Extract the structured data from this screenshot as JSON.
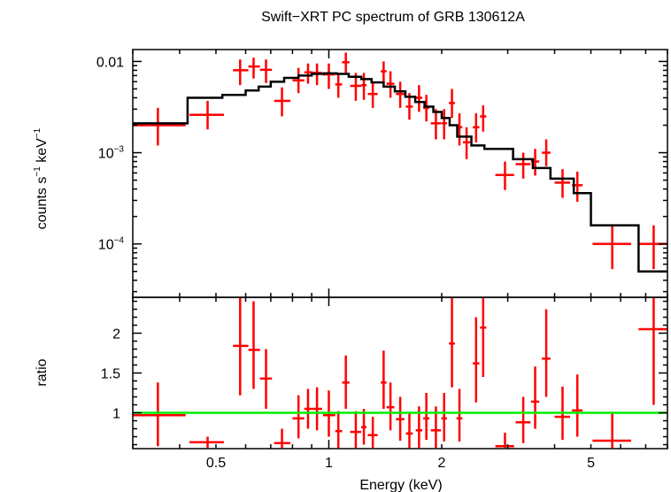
{
  "title": "Swift−XRT PC spectrum of GRB 130612A",
  "chart_data": [
    {
      "type": "line",
      "panel": "spectrum",
      "title": "Swift−XRT PC spectrum of GRB 130612A",
      "ylabel_parts": {
        "base": "counts s",
        "exp1": "−1",
        "mid": " keV",
        "exp2": "−1"
      },
      "xscale": "log",
      "yscale": "log",
      "xlim": [
        0.3,
        8.0
      ],
      "ylim": [
        2.6e-05,
        0.0135
      ],
      "ytick_labels": [
        {
          "value": 0.01,
          "base": "0.01",
          "exp": ""
        },
        {
          "value": 0.001,
          "base": "10",
          "exp": "−3"
        },
        {
          "value": 0.0001,
          "base": "10",
          "exp": "−4"
        }
      ],
      "colors": {
        "data": "#ff0000",
        "model": "#000000"
      },
      "series": [
        {
          "name": "data",
          "style": "crosses",
          "points": [
            {
              "x": 0.35,
              "xlo": 0.3,
              "xhi": 0.415,
              "y": 0.002,
              "ylo": 0.0012,
              "yhi": 0.0031
            },
            {
              "x": 0.475,
              "xlo": 0.425,
              "xhi": 0.525,
              "y": 0.0026,
              "ylo": 0.0018,
              "yhi": 0.0037
            },
            {
              "x": 0.58,
              "xlo": 0.555,
              "xhi": 0.61,
              "y": 0.008,
              "ylo": 0.0055,
              "yhi": 0.0105
            },
            {
              "x": 0.63,
              "xlo": 0.61,
              "xhi": 0.655,
              "y": 0.0088,
              "ylo": 0.0065,
              "yhi": 0.011
            },
            {
              "x": 0.68,
              "xlo": 0.655,
              "xhi": 0.705,
              "y": 0.0081,
              "ylo": 0.0058,
              "yhi": 0.0105
            },
            {
              "x": 0.75,
              "xlo": 0.715,
              "xhi": 0.79,
              "y": 0.0037,
              "ylo": 0.0025,
              "yhi": 0.0052
            },
            {
              "x": 0.83,
              "xlo": 0.8,
              "xhi": 0.86,
              "y": 0.0062,
              "ylo": 0.0045,
              "yhi": 0.0085
            },
            {
              "x": 0.88,
              "xlo": 0.86,
              "xhi": 0.905,
              "y": 0.0076,
              "ylo": 0.0057,
              "yhi": 0.0095
            },
            {
              "x": 0.93,
              "xlo": 0.905,
              "xhi": 0.96,
              "y": 0.0075,
              "ylo": 0.0055,
              "yhi": 0.0095
            },
            {
              "x": 1.0,
              "xlo": 0.965,
              "xhi": 1.04,
              "y": 0.0072,
              "ylo": 0.005,
              "yhi": 0.0095
            },
            {
              "x": 1.06,
              "xlo": 1.04,
              "xhi": 1.085,
              "y": 0.0056,
              "ylo": 0.004,
              "yhi": 0.0075
            },
            {
              "x": 1.11,
              "xlo": 1.085,
              "xhi": 1.135,
              "y": 0.0098,
              "ylo": 0.0075,
              "yhi": 0.0125
            },
            {
              "x": 1.18,
              "xlo": 1.14,
              "xhi": 1.22,
              "y": 0.0054,
              "ylo": 0.0037,
              "yhi": 0.0075
            },
            {
              "x": 1.24,
              "xlo": 1.22,
              "xhi": 1.26,
              "y": 0.0055,
              "ylo": 0.0038,
              "yhi": 0.0075
            },
            {
              "x": 1.31,
              "xlo": 1.27,
              "xhi": 1.35,
              "y": 0.0044,
              "ylo": 0.0031,
              "yhi": 0.006
            },
            {
              "x": 1.4,
              "xlo": 1.375,
              "xhi": 1.425,
              "y": 0.0078,
              "ylo": 0.0058,
              "yhi": 0.01
            },
            {
              "x": 1.46,
              "xlo": 1.425,
              "xhi": 1.495,
              "y": 0.0057,
              "ylo": 0.004,
              "yhi": 0.0078
            },
            {
              "x": 1.55,
              "xlo": 1.51,
              "xhi": 1.59,
              "y": 0.0044,
              "ylo": 0.0031,
              "yhi": 0.006
            },
            {
              "x": 1.64,
              "xlo": 1.605,
              "xhi": 1.675,
              "y": 0.0032,
              "ylo": 0.0023,
              "yhi": 0.0045
            },
            {
              "x": 1.74,
              "xlo": 1.705,
              "xhi": 1.775,
              "y": 0.004,
              "ylo": 0.0028,
              "yhi": 0.0055
            },
            {
              "x": 1.82,
              "xlo": 1.785,
              "xhi": 1.855,
              "y": 0.0031,
              "ylo": 0.0022,
              "yhi": 0.0043
            },
            {
              "x": 1.93,
              "xlo": 1.87,
              "xhi": 1.99,
              "y": 0.0021,
              "ylo": 0.0014,
              "yhi": 0.003
            },
            {
              "x": 2.03,
              "xlo": 1.995,
              "xhi": 2.065,
              "y": 0.0021,
              "ylo": 0.0014,
              "yhi": 0.003
            },
            {
              "x": 2.13,
              "xlo": 2.09,
              "xhi": 2.17,
              "y": 0.0035,
              "ylo": 0.0024,
              "yhi": 0.005
            },
            {
              "x": 2.23,
              "xlo": 2.19,
              "xhi": 2.27,
              "y": 0.0019,
              "ylo": 0.0012,
              "yhi": 0.0027
            },
            {
              "x": 2.33,
              "xlo": 2.28,
              "xhi": 2.38,
              "y": 0.0013,
              "ylo": 0.00085,
              "yhi": 0.0019
            },
            {
              "x": 2.47,
              "xlo": 2.42,
              "xhi": 2.52,
              "y": 0.0019,
              "ylo": 0.0013,
              "yhi": 0.0027
            },
            {
              "x": 2.58,
              "xlo": 2.53,
              "xhi": 2.63,
              "y": 0.0025,
              "ylo": 0.0017,
              "yhi": 0.0033
            },
            {
              "x": 2.95,
              "xlo": 2.78,
              "xhi": 3.12,
              "y": 0.00057,
              "ylo": 0.00039,
              "yhi": 0.0008
            },
            {
              "x": 3.3,
              "xlo": 3.15,
              "xhi": 3.45,
              "y": 0.00075,
              "ylo": 0.00052,
              "yhi": 0.001
            },
            {
              "x": 3.55,
              "xlo": 3.46,
              "xhi": 3.64,
              "y": 0.0008,
              "ylo": 0.00056,
              "yhi": 0.0011
            },
            {
              "x": 3.8,
              "xlo": 3.7,
              "xhi": 3.9,
              "y": 0.001,
              "ylo": 0.00071,
              "yhi": 0.0014
            },
            {
              "x": 4.2,
              "xlo": 4.0,
              "xhi": 4.4,
              "y": 0.00047,
              "ylo": 0.00032,
              "yhi": 0.00066
            },
            {
              "x": 4.6,
              "xlo": 4.45,
              "xhi": 4.75,
              "y": 0.00044,
              "ylo": 0.00029,
              "yhi": 0.00062
            },
            {
              "x": 5.7,
              "xlo": 5.05,
              "xhi": 6.4,
              "y": 0.0001,
              "ylo": 5.3e-05,
              "yhi": 0.00016
            },
            {
              "x": 7.35,
              "xlo": 6.7,
              "xhi": 8.0,
              "y": 0.0001,
              "ylo": 5.3e-05,
              "yhi": 0.00016
            }
          ]
        },
        {
          "name": "model",
          "style": "step",
          "steps": [
            {
              "x0": 0.3,
              "x1": 0.42,
              "y": 0.0021
            },
            {
              "x0": 0.42,
              "x1": 0.52,
              "y": 0.004
            },
            {
              "x0": 0.52,
              "x1": 0.6,
              "y": 0.0043
            },
            {
              "x0": 0.6,
              "x1": 0.65,
              "y": 0.0048
            },
            {
              "x0": 0.65,
              "x1": 0.7,
              "y": 0.0053
            },
            {
              "x0": 0.7,
              "x1": 0.76,
              "y": 0.006
            },
            {
              "x0": 0.76,
              "x1": 0.83,
              "y": 0.0066
            },
            {
              "x0": 0.83,
              "x1": 0.9,
              "y": 0.007
            },
            {
              "x0": 0.9,
              "x1": 0.97,
              "y": 0.0073
            },
            {
              "x0": 0.97,
              "x1": 1.05,
              "y": 0.0074
            },
            {
              "x0": 1.05,
              "x1": 1.13,
              "y": 0.0073
            },
            {
              "x0": 1.13,
              "x1": 1.22,
              "y": 0.0068
            },
            {
              "x0": 1.22,
              "x1": 1.3,
              "y": 0.0064
            },
            {
              "x0": 1.3,
              "x1": 1.4,
              "y": 0.0059
            },
            {
              "x0": 1.4,
              "x1": 1.5,
              "y": 0.0053
            },
            {
              "x0": 1.5,
              "x1": 1.6,
              "y": 0.0047
            },
            {
              "x0": 1.6,
              "x1": 1.7,
              "y": 0.0041
            },
            {
              "x0": 1.7,
              "x1": 1.8,
              "y": 0.0036
            },
            {
              "x0": 1.8,
              "x1": 1.9,
              "y": 0.0032
            },
            {
              "x0": 1.9,
              "x1": 2.0,
              "y": 0.0028
            },
            {
              "x0": 2.0,
              "x1": 2.1,
              "y": 0.0024
            },
            {
              "x0": 2.1,
              "x1": 2.2,
              "y": 0.002
            },
            {
              "x0": 2.2,
              "x1": 2.4,
              "y": 0.0015
            },
            {
              "x0": 2.4,
              "x1": 2.6,
              "y": 0.0012
            },
            {
              "x0": 2.6,
              "x1": 3.1,
              "y": 0.0011
            },
            {
              "x0": 3.1,
              "x1": 3.5,
              "y": 0.00085
            },
            {
              "x0": 3.5,
              "x1": 3.9,
              "y": 0.00068
            },
            {
              "x0": 3.9,
              "x1": 4.5,
              "y": 0.00052
            },
            {
              "x0": 4.5,
              "x1": 5.0,
              "y": 0.00036
            },
            {
              "x0": 5.0,
              "x1": 6.7,
              "y": 0.00016
            },
            {
              "x0": 6.7,
              "x1": 8.0,
              "y": 5e-05
            }
          ]
        }
      ]
    },
    {
      "type": "scatter",
      "panel": "ratio",
      "xlabel": "Energy (keV)",
      "ylabel": "ratio",
      "xscale": "log",
      "yscale": "linear",
      "xlim": [
        0.3,
        8.0
      ],
      "ylim": [
        0.55,
        2.45
      ],
      "xtick_labels": [
        {
          "value": 0.5,
          "label": "0.5"
        },
        {
          "value": 1,
          "label": "1"
        },
        {
          "value": 2,
          "label": "2"
        },
        {
          "value": 5,
          "label": "5"
        }
      ],
      "ytick_labels": [
        {
          "value": 1,
          "label": "1"
        },
        {
          "value": 1.5,
          "label": "1.5"
        },
        {
          "value": 2,
          "label": "2"
        }
      ],
      "reference_line": {
        "y": 1.0,
        "color": "#00ee00"
      },
      "colors": {
        "data": "#ff0000"
      },
      "series": [
        {
          "name": "ratio",
          "style": "crosses",
          "points": [
            {
              "x": 0.35,
              "xlo": 0.3,
              "xhi": 0.415,
              "y": 0.97,
              "ylo": 0.58,
              "yhi": 1.38
            },
            {
              "x": 0.475,
              "xlo": 0.425,
              "xhi": 0.525,
              "y": 0.63,
              "ylo": 0.56,
              "yhi": 0.7
            },
            {
              "x": 0.58,
              "xlo": 0.555,
              "xhi": 0.61,
              "y": 1.84,
              "ylo": 1.22,
              "yhi": 2.45
            },
            {
              "x": 0.63,
              "xlo": 0.61,
              "xhi": 0.655,
              "y": 1.79,
              "ylo": 1.3,
              "yhi": 2.4
            },
            {
              "x": 0.68,
              "xlo": 0.655,
              "xhi": 0.705,
              "y": 1.43,
              "ylo": 1.05,
              "yhi": 1.8
            },
            {
              "x": 0.75,
              "xlo": 0.715,
              "xhi": 0.79,
              "y": 0.62,
              "ylo": 0.56,
              "yhi": 0.8
            },
            {
              "x": 0.83,
              "xlo": 0.8,
              "xhi": 0.86,
              "y": 0.93,
              "ylo": 0.68,
              "yhi": 1.22
            },
            {
              "x": 0.88,
              "xlo": 0.86,
              "xhi": 0.905,
              "y": 1.05,
              "ylo": 0.8,
              "yhi": 1.3
            },
            {
              "x": 0.93,
              "xlo": 0.905,
              "xhi": 0.96,
              "y": 1.05,
              "ylo": 0.78,
              "yhi": 1.32
            },
            {
              "x": 1.0,
              "xlo": 0.965,
              "xhi": 1.04,
              "y": 0.97,
              "ylo": 0.7,
              "yhi": 1.28
            },
            {
              "x": 1.06,
              "xlo": 1.04,
              "xhi": 1.085,
              "y": 0.77,
              "ylo": 0.56,
              "yhi": 1.02
            },
            {
              "x": 1.11,
              "xlo": 1.085,
              "xhi": 1.135,
              "y": 1.38,
              "ylo": 1.05,
              "yhi": 1.72
            },
            {
              "x": 1.18,
              "xlo": 1.14,
              "xhi": 1.22,
              "y": 0.76,
              "ylo": 0.56,
              "yhi": 1.02
            },
            {
              "x": 1.24,
              "xlo": 1.22,
              "xhi": 1.26,
              "y": 0.82,
              "ylo": 0.6,
              "yhi": 1.05
            },
            {
              "x": 1.31,
              "xlo": 1.27,
              "xhi": 1.35,
              "y": 0.72,
              "ylo": 0.56,
              "yhi": 0.95
            },
            {
              "x": 1.4,
              "xlo": 1.375,
              "xhi": 1.425,
              "y": 1.38,
              "ylo": 1.05,
              "yhi": 1.78
            },
            {
              "x": 1.46,
              "xlo": 1.425,
              "xhi": 1.495,
              "y": 1.07,
              "ylo": 0.78,
              "yhi": 1.38
            },
            {
              "x": 1.55,
              "xlo": 1.51,
              "xhi": 1.59,
              "y": 0.92,
              "ylo": 0.65,
              "yhi": 1.2
            },
            {
              "x": 1.64,
              "xlo": 1.605,
              "xhi": 1.675,
              "y": 0.74,
              "ylo": 0.56,
              "yhi": 1.0
            },
            {
              "x": 1.74,
              "xlo": 1.705,
              "xhi": 1.775,
              "y": 0.78,
              "ylo": 0.56,
              "yhi": 1.08
            },
            {
              "x": 1.82,
              "xlo": 1.785,
              "xhi": 1.855,
              "y": 0.93,
              "ylo": 0.66,
              "yhi": 1.25
            },
            {
              "x": 1.93,
              "xlo": 1.87,
              "xhi": 1.99,
              "y": 0.78,
              "ylo": 0.56,
              "yhi": 1.08
            },
            {
              "x": 2.03,
              "xlo": 1.995,
              "xhi": 2.065,
              "y": 0.93,
              "ylo": 0.64,
              "yhi": 1.25
            },
            {
              "x": 2.13,
              "xlo": 2.09,
              "xhi": 2.17,
              "y": 1.87,
              "ylo": 1.32,
              "yhi": 2.45
            },
            {
              "x": 2.23,
              "xlo": 2.19,
              "xhi": 2.27,
              "y": 0.93,
              "ylo": 0.64,
              "yhi": 1.3
            },
            {
              "x": 2.47,
              "xlo": 2.42,
              "xhi": 2.52,
              "y": 1.62,
              "ylo": 1.13,
              "yhi": 2.2
            },
            {
              "x": 2.58,
              "xlo": 2.53,
              "xhi": 2.63,
              "y": 2.07,
              "ylo": 1.45,
              "yhi": 2.45
            },
            {
              "x": 2.95,
              "xlo": 2.78,
              "xhi": 3.12,
              "y": 0.58,
              "ylo": 0.56,
              "yhi": 0.75
            },
            {
              "x": 3.3,
              "xlo": 3.15,
              "xhi": 3.45,
              "y": 0.88,
              "ylo": 0.62,
              "yhi": 1.2
            },
            {
              "x": 3.55,
              "xlo": 3.46,
              "xhi": 3.64,
              "y": 1.14,
              "ylo": 0.8,
              "yhi": 1.58
            },
            {
              "x": 3.8,
              "xlo": 3.7,
              "xhi": 3.9,
              "y": 1.68,
              "ylo": 1.2,
              "yhi": 2.3
            },
            {
              "x": 4.2,
              "xlo": 4.0,
              "xhi": 4.4,
              "y": 0.95,
              "ylo": 0.66,
              "yhi": 1.33
            },
            {
              "x": 4.6,
              "xlo": 4.45,
              "xhi": 4.75,
              "y": 1.03,
              "ylo": 0.7,
              "yhi": 1.48
            },
            {
              "x": 5.7,
              "xlo": 5.05,
              "xhi": 6.4,
              "y": 0.65,
              "ylo": 0.56,
              "yhi": 1.0
            },
            {
              "x": 7.35,
              "xlo": 6.7,
              "xhi": 8.0,
              "y": 2.05,
              "ylo": 1.1,
              "yhi": 2.45
            }
          ]
        }
      ]
    }
  ]
}
